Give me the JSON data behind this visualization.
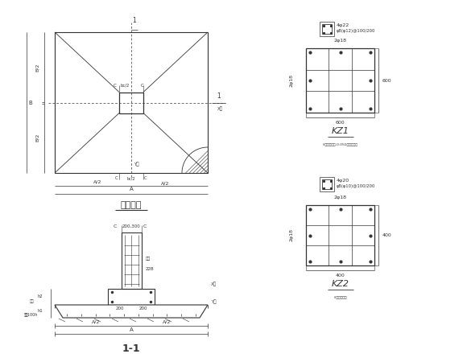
{
  "bg_color": "#ffffff",
  "line_color": "#333333",
  "title1": "基础详图",
  "title2": "1-1",
  "kz1_label": "KZ1",
  "kz2_label": "KZ2",
  "kz1_sub": "()中柱距柱底-0.050处箍筋加密",
  "kz2_sub": "()中柱距柱底"
}
